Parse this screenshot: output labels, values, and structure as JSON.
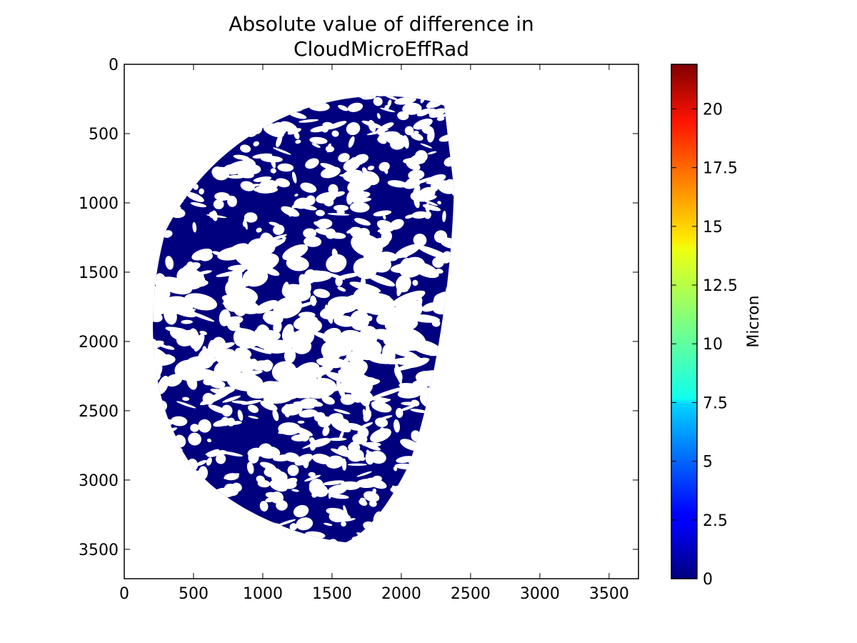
{
  "chart_data": {
    "type": "heatmap",
    "title": "Absolute value of difference in CloudMicroEffRad",
    "title_lines": [
      "Absolute value of difference in",
      "CloudMicroEffRad"
    ],
    "xlabel": "",
    "ylabel": "",
    "xlim": [
      0,
      3712
    ],
    "ylim": [
      3712,
      0
    ],
    "y_inverted": true,
    "x_ticks": [
      0,
      500,
      1000,
      1500,
      2000,
      2500,
      3000,
      3500
    ],
    "y_ticks": [
      0,
      500,
      1000,
      1500,
      2000,
      2500,
      3000,
      3500
    ],
    "grid": false,
    "colorbar": {
      "label": "Micron",
      "colormap": "jet",
      "range": [
        0,
        21.9
      ],
      "ticks": [
        0,
        2.5,
        5,
        7.5,
        10,
        12.5,
        15,
        17.5,
        20
      ],
      "tick_labels": [
        "0",
        "2.5",
        "5",
        "7.5",
        "10",
        "12.5",
        "15",
        "17.5",
        "20"
      ]
    },
    "disk_extent": {
      "x_range": [
        180,
        2380
      ],
      "y_range": [
        230,
        3450
      ]
    },
    "dominant_value": 0,
    "dominant_color": "#00007f",
    "no_data_color": "#ffffff"
  }
}
